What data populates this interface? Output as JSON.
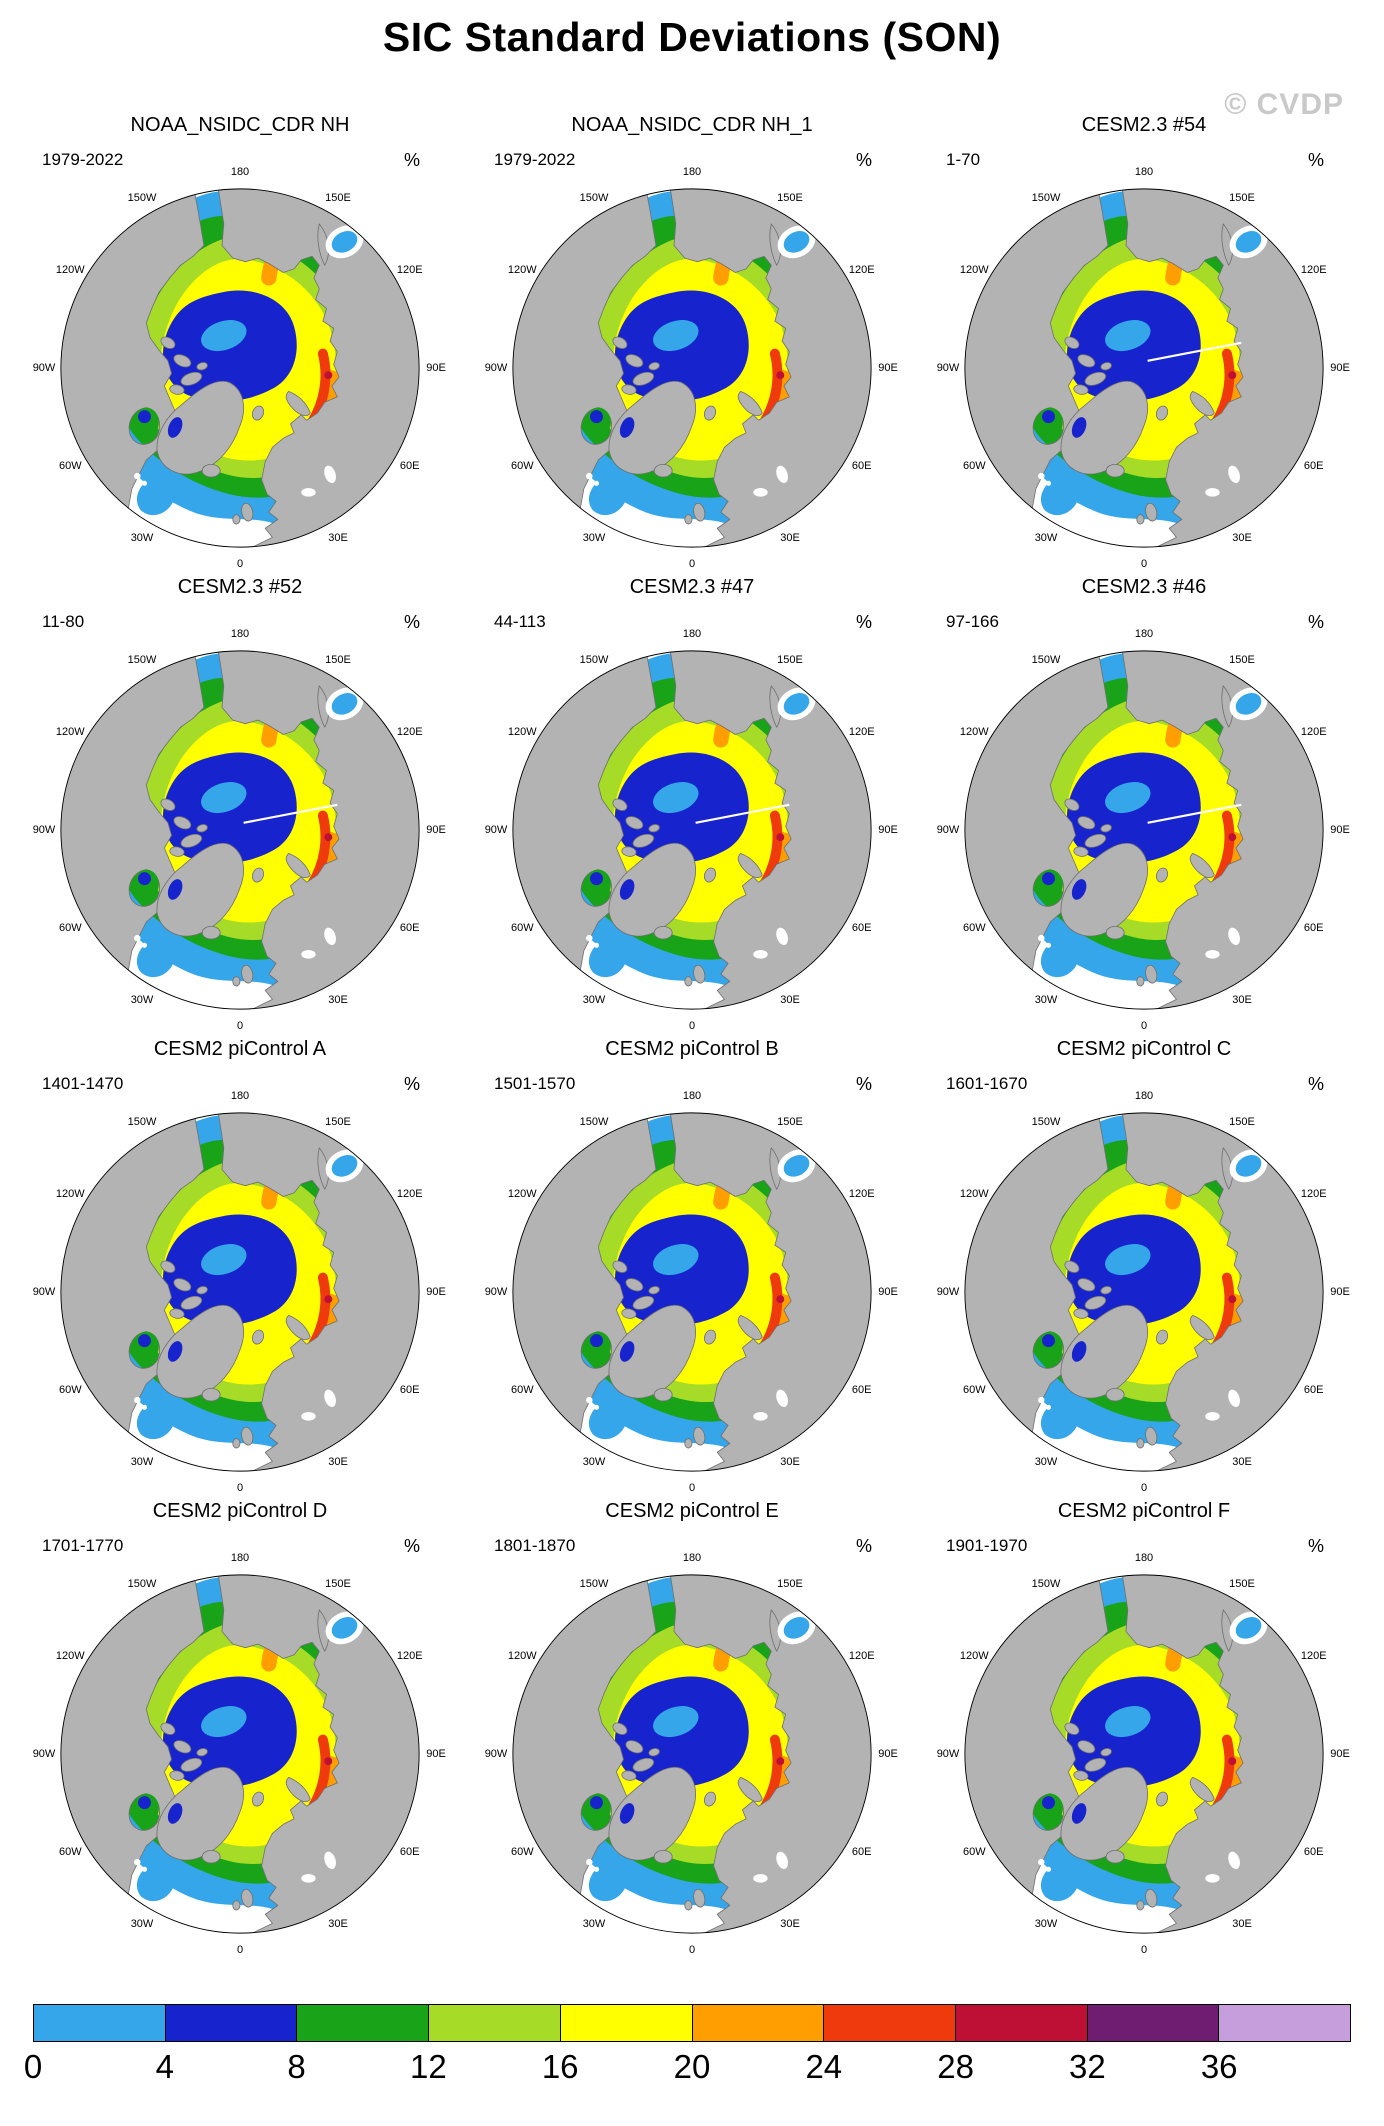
{
  "title": "SIC Standard Deviations (SON)",
  "watermark": "© CVDP",
  "units": "%",
  "panels": [
    {
      "title": "NOAA_NSIDC_CDR NH",
      "period": "1979-2022",
      "seam": false
    },
    {
      "title": "NOAA_NSIDC_CDR NH_1",
      "period": "1979-2022",
      "seam": false
    },
    {
      "title": "CESM2.3 #54",
      "period": "1-70",
      "seam": true
    },
    {
      "title": "CESM2.3 #52",
      "period": "11-80",
      "seam": true
    },
    {
      "title": "CESM2.3 #47",
      "period": "44-113",
      "seam": true
    },
    {
      "title": "CESM2.3 #46",
      "period": "97-166",
      "seam": true
    },
    {
      "title": "CESM2 piControl A",
      "period": "1401-1470",
      "seam": false
    },
    {
      "title": "CESM2 piControl B",
      "period": "1501-1570",
      "seam": false
    },
    {
      "title": "CESM2 piControl C",
      "period": "1601-1670",
      "seam": false
    },
    {
      "title": "CESM2 piControl D",
      "period": "1701-1770",
      "seam": false
    },
    {
      "title": "CESM2 piControl E",
      "period": "1801-1870",
      "seam": false
    },
    {
      "title": "CESM2 piControl F",
      "period": "1901-1970",
      "seam": false
    }
  ],
  "map": {
    "lon_labels": [
      "180",
      "150E",
      "120E",
      "90E",
      "60E",
      "30E",
      "0",
      "30W",
      "60W",
      "90W",
      "120W",
      "150W"
    ],
    "land_color": "#b3b3b3",
    "ocean_color": "#ffffff"
  },
  "colorbar": {
    "tick_labels": [
      "0",
      "4",
      "8",
      "12",
      "16",
      "20",
      "24",
      "28",
      "32",
      "36"
    ],
    "colors": [
      "#35a6e9",
      "#1723cc",
      "#18a318",
      "#a6dc28",
      "#ffff00",
      "#ff9e00",
      "#ee3a0c",
      "#be1035",
      "#6e1d71",
      "#c79edc"
    ]
  },
  "chart_data": {
    "type": "heatmap",
    "title": "SIC Standard Deviations (SON)",
    "units": "%",
    "projection": "north polar stereographic",
    "panel_grid": [
      4,
      3
    ],
    "panels": [
      {
        "name": "NOAA_NSIDC_CDR NH",
        "period": "1979-2022"
      },
      {
        "name": "NOAA_NSIDC_CDR NH_1",
        "period": "1979-2022"
      },
      {
        "name": "CESM2.3 #54",
        "period": "1-70"
      },
      {
        "name": "CESM2.3 #52",
        "period": "11-80"
      },
      {
        "name": "CESM2.3 #47",
        "period": "44-113"
      },
      {
        "name": "CESM2.3 #46",
        "period": "97-166"
      },
      {
        "name": "CESM2 piControl A",
        "period": "1401-1470"
      },
      {
        "name": "CESM2 piControl B",
        "period": "1501-1570"
      },
      {
        "name": "CESM2 piControl C",
        "period": "1601-1670"
      },
      {
        "name": "CESM2 piControl D",
        "period": "1701-1770"
      },
      {
        "name": "CESM2 piControl E",
        "period": "1801-1870"
      },
      {
        "name": "CESM2 piControl F",
        "period": "1901-1970"
      }
    ],
    "levels": [
      0,
      4,
      8,
      12,
      16,
      20,
      24,
      28,
      32,
      36
    ],
    "palette": [
      "#35a6e9",
      "#1723cc",
      "#18a318",
      "#a6dc28",
      "#ffff00",
      "#ff9e00",
      "#ee3a0c",
      "#be1035",
      "#6e1d71",
      "#c79edc"
    ],
    "graticule_labels": [
      "180",
      "150E",
      "120E",
      "90E",
      "60E",
      "30E",
      "0",
      "30W",
      "60W",
      "90W",
      "120W",
      "150W"
    ],
    "legend_position": "bottom"
  }
}
